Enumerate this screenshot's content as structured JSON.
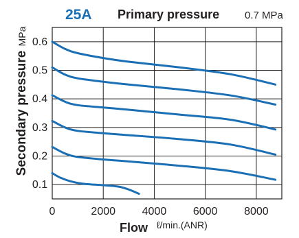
{
  "chart_data": {
    "type": "line",
    "panel_label": "25A",
    "condition_label": "Primary pressure",
    "condition_value": "0.7 MPa",
    "xlabel": "Flow",
    "xunit": "ℓ/min.(ANR)",
    "ylabel": "Secondary pressure",
    "yunit": "MPa",
    "xlim": [
      0,
      9000
    ],
    "ylim": [
      0.05,
      0.65
    ],
    "x_ticks": [
      "0",
      "2000",
      "4000",
      "6000",
      "8000"
    ],
    "x_tick_values": [
      0,
      2000,
      4000,
      6000,
      8000
    ],
    "y_ticks": [
      "0.1",
      "0.2",
      "0.3",
      "0.4",
      "0.5",
      "0.6"
    ],
    "y_tick_values": [
      0.1,
      0.2,
      0.3,
      0.4,
      0.5,
      0.6
    ],
    "grid": true,
    "line_color": "#1b6fb5",
    "series": [
      {
        "values": [
          [
            0,
            0.6
          ],
          [
            500,
            0.575
          ],
          [
            1000,
            0.56
          ],
          [
            2000,
            0.543
          ],
          [
            3000,
            0.53
          ],
          [
            5000,
            0.51
          ],
          [
            7000,
            0.486
          ],
          [
            8750,
            0.45
          ]
        ]
      },
      {
        "values": [
          [
            0,
            0.51
          ],
          [
            500,
            0.485
          ],
          [
            1000,
            0.472
          ],
          [
            2000,
            0.46
          ],
          [
            3000,
            0.45
          ],
          [
            5000,
            0.433
          ],
          [
            7000,
            0.412
          ],
          [
            8750,
            0.38
          ]
        ]
      },
      {
        "values": [
          [
            0,
            0.413
          ],
          [
            500,
            0.39
          ],
          [
            1000,
            0.378
          ],
          [
            2000,
            0.37
          ],
          [
            3000,
            0.362
          ],
          [
            5000,
            0.345
          ],
          [
            7000,
            0.327
          ],
          [
            8750,
            0.293
          ]
        ]
      },
      {
        "values": [
          [
            0,
            0.323
          ],
          [
            500,
            0.3
          ],
          [
            1000,
            0.288
          ],
          [
            2000,
            0.28
          ],
          [
            3000,
            0.273
          ],
          [
            5000,
            0.259
          ],
          [
            7000,
            0.24
          ],
          [
            8750,
            0.205
          ]
        ]
      },
      {
        "values": [
          [
            0,
            0.232
          ],
          [
            500,
            0.209
          ],
          [
            1000,
            0.197
          ],
          [
            2000,
            0.188
          ],
          [
            3000,
            0.181
          ],
          [
            5000,
            0.166
          ],
          [
            7000,
            0.147
          ],
          [
            8750,
            0.117
          ]
        ]
      },
      {
        "values": [
          [
            0,
            0.14
          ],
          [
            300,
            0.125
          ],
          [
            700,
            0.112
          ],
          [
            1200,
            0.103
          ],
          [
            2000,
            0.098
          ],
          [
            2600,
            0.093
          ],
          [
            3000,
            0.083
          ],
          [
            3400,
            0.068
          ]
        ]
      }
    ]
  }
}
